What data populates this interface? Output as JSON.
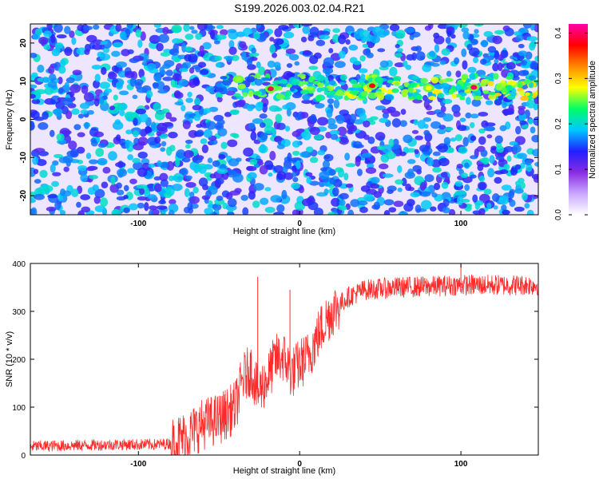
{
  "figure_title": "S199.2026.003.02.04.R21",
  "colors": {
    "background": "#ffffff",
    "snr_line": "#ff2a2a",
    "spectrogram_base": "#9b5cff",
    "colormap": [
      "#ffffff",
      "#d6c4ff",
      "#8a2be2",
      "#3a3aff",
      "#00c8ff",
      "#00ff66",
      "#ffff00",
      "#ff8800",
      "#ff0000",
      "#ff00aa"
    ]
  },
  "chart_data": [
    {
      "type": "heatmap",
      "xlabel": "Height of straight line (km)",
      "ylabel": "Frequency (Hz)",
      "xlim": [
        -167,
        148
      ],
      "ylim": [
        -25,
        25
      ],
      "x_ticks": [
        -100,
        0,
        100
      ],
      "y_ticks": [
        -20,
        -10,
        0,
        10,
        20
      ],
      "colorbar": {
        "label": "Normalized spectral amplitude",
        "range": [
          0.0,
          0.42
        ],
        "ticks": [
          0.0,
          0.1,
          0.2,
          0.3,
          0.4
        ]
      },
      "features": [
        {
          "description_free": true,
          "x_start": -50,
          "x_end": 148,
          "frequency": 8.5,
          "peak_amplitude": 0.4
        }
      ]
    },
    {
      "type": "line",
      "xlabel": "Height of straight line (km)",
      "ylabel": "SNR (10 * v/v)",
      "xlim": [
        -167,
        148
      ],
      "ylim": [
        0,
        400
      ],
      "x_ticks": [
        -100,
        0,
        100
      ],
      "y_ticks": [
        0,
        100,
        200,
        300,
        400
      ],
      "series": [
        {
          "x": [
            -167,
            -140,
            -110,
            -90,
            -80,
            -70,
            -60,
            -50,
            -40,
            -35,
            -30,
            -26,
            -20,
            -15,
            -10,
            -5,
            0,
            5,
            10,
            15,
            20,
            30,
            40,
            60,
            80,
            100,
            120,
            148
          ],
          "y": [
            18,
            20,
            22,
            22,
            24,
            40,
            65,
            75,
            100,
            160,
            180,
            130,
            160,
            200,
            205,
            170,
            190,
            205,
            240,
            275,
            300,
            330,
            345,
            350,
            352,
            355,
            355,
            355
          ]
        }
      ],
      "spikes": [
        {
          "x": -26,
          "y": 372
        },
        {
          "x": -6,
          "y": 345
        },
        {
          "x": 100,
          "y": 398
        }
      ]
    }
  ]
}
